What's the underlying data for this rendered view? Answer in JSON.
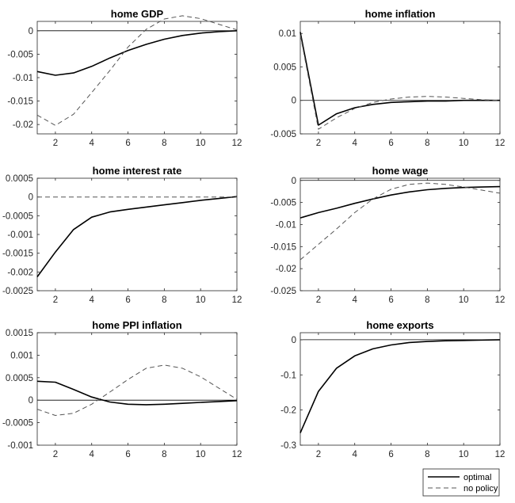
{
  "chart_data": [
    {
      "type": "line",
      "title": "home GDP",
      "xlim": [
        1,
        12
      ],
      "ylim": [
        -0.022,
        0.002
      ],
      "xticks": [
        2,
        4,
        6,
        8,
        10,
        12
      ],
      "yticks": [
        0,
        -0.005,
        -0.01,
        -0.015,
        -0.02
      ],
      "ytick_labels": [
        "0",
        "-0.005",
        "-0.01",
        "-0.015",
        "-0.02"
      ],
      "zero_line": true,
      "x": [
        1,
        2,
        3,
        4,
        5,
        6,
        7,
        8,
        9,
        10,
        11,
        12
      ],
      "series": [
        {
          "name": "optimal",
          "style": "solid",
          "values": [
            -0.0087,
            -0.0095,
            -0.009,
            -0.0076,
            -0.0058,
            -0.0042,
            -0.0029,
            -0.0018,
            -0.001,
            -0.0005,
            -0.0002,
            0.0
          ]
        },
        {
          "name": "no policy",
          "style": "dashed",
          "values": [
            -0.018,
            -0.0202,
            -0.0178,
            -0.0132,
            -0.0085,
            -0.0035,
            0.0003,
            0.0025,
            0.0032,
            0.0026,
            0.0014,
            0.0002
          ]
        }
      ]
    },
    {
      "type": "line",
      "title": "home inflation",
      "xlim": [
        1,
        12
      ],
      "ylim": [
        -0.005,
        0.0118
      ],
      "xticks": [
        2,
        4,
        6,
        8,
        10,
        12
      ],
      "yticks": [
        0.01,
        0.005,
        0,
        -0.005
      ],
      "ytick_labels": [
        "0.01",
        "0.005",
        "0",
        "-0.005"
      ],
      "zero_line": true,
      "x": [
        1,
        2,
        3,
        4,
        5,
        6,
        7,
        8,
        9,
        10,
        11,
        12
      ],
      "series": [
        {
          "name": "optimal",
          "style": "solid",
          "values": [
            0.0102,
            -0.0037,
            -0.002,
            -0.0011,
            -0.0006,
            -0.0003,
            -0.0002,
            -0.0001,
            -0.0001,
            0.0,
            0.0,
            0.0
          ]
        },
        {
          "name": "no policy",
          "style": "dashed",
          "values": [
            0.0098,
            -0.0043,
            -0.0026,
            -0.0012,
            -0.0003,
            0.0002,
            0.0005,
            0.0006,
            0.0005,
            0.0003,
            0.0001,
            0.0
          ]
        }
      ]
    },
    {
      "type": "line",
      "title": "home interest rate",
      "xlim": [
        1,
        12
      ],
      "ylim": [
        -0.0025,
        0.0005
      ],
      "xticks": [
        2,
        4,
        6,
        8,
        10,
        12
      ],
      "yticks": [
        0.0005,
        0,
        -0.0005,
        -0.001,
        -0.0015,
        -0.002,
        -0.0025
      ],
      "ytick_labels": [
        "0.0005",
        "0",
        "-0.0005",
        "-0.001",
        "-0.0015",
        "-0.002",
        "-0.0025"
      ],
      "zero_line": false,
      "x": [
        1,
        2,
        3,
        4,
        5,
        6,
        7,
        8,
        9,
        10,
        11,
        12
      ],
      "series": [
        {
          "name": "optimal",
          "style": "solid",
          "values": [
            -0.00213,
            -0.00147,
            -0.00087,
            -0.00054,
            -0.0004,
            -0.00033,
            -0.00027,
            -0.00021,
            -0.00015,
            -9e-05,
            -4e-05,
            1e-05
          ]
        },
        {
          "name": "no policy",
          "style": "dashed",
          "values": [
            0,
            0,
            0,
            0,
            0,
            0,
            0,
            0,
            0,
            0,
            0,
            0
          ]
        }
      ]
    },
    {
      "type": "line",
      "title": "home wage",
      "xlim": [
        1,
        12
      ],
      "ylim": [
        -0.025,
        0.0005
      ],
      "xticks": [
        2,
        4,
        6,
        8,
        10,
        12
      ],
      "yticks": [
        0,
        -0.005,
        -0.01,
        -0.015,
        -0.02,
        -0.025
      ],
      "ytick_labels": [
        "0",
        "-0.005",
        "-0.01",
        "-0.015",
        "-0.02",
        "-0.025"
      ],
      "zero_line": true,
      "x": [
        1,
        2,
        3,
        4,
        5,
        6,
        7,
        8,
        9,
        10,
        11,
        12
      ],
      "series": [
        {
          "name": "optimal",
          "style": "solid",
          "values": [
            -0.0085,
            -0.0073,
            -0.0063,
            -0.0052,
            -0.0042,
            -0.0033,
            -0.0026,
            -0.0021,
            -0.0018,
            -0.0016,
            -0.0015,
            -0.0014
          ]
        },
        {
          "name": "no policy",
          "style": "dashed",
          "values": [
            -0.018,
            -0.0145,
            -0.011,
            -0.0073,
            -0.0042,
            -0.002,
            -0.0009,
            -0.0006,
            -0.0009,
            -0.0015,
            -0.0022,
            -0.0029
          ]
        }
      ]
    },
    {
      "type": "line",
      "title": "home PPI inflation",
      "xlim": [
        1,
        12
      ],
      "ylim": [
        -0.001,
        0.0015
      ],
      "xticks": [
        2,
        4,
        6,
        8,
        10,
        12
      ],
      "yticks": [
        0.0015,
        0.001,
        0.0005,
        0,
        -0.0005,
        -0.001
      ],
      "ytick_labels": [
        "0.0015",
        "0.001",
        "0.0005",
        "0",
        "-0.0005",
        "-0.001"
      ],
      "zero_line": true,
      "x": [
        1,
        2,
        3,
        4,
        5,
        6,
        7,
        8,
        9,
        10,
        11,
        12
      ],
      "series": [
        {
          "name": "optimal",
          "style": "solid",
          "values": [
            0.00042,
            0.0004,
            0.00024,
            7e-05,
            -4e-05,
            -9e-05,
            -0.0001,
            -9e-05,
            -7e-05,
            -5e-05,
            -3e-05,
            -1e-05
          ]
        },
        {
          "name": "no policy",
          "style": "dashed",
          "values": [
            -0.0002,
            -0.00034,
            -0.00029,
            -9e-05,
            0.00018,
            0.00046,
            0.00071,
            0.00078,
            0.00071,
            0.00052,
            0.00027,
            2e-05
          ]
        }
      ]
    },
    {
      "type": "line",
      "title": "home exports",
      "xlim": [
        1,
        12
      ],
      "ylim": [
        -0.3,
        0.02
      ],
      "xticks": [
        2,
        4,
        6,
        8,
        10,
        12
      ],
      "yticks": [
        0,
        -0.1,
        -0.2,
        -0.3
      ],
      "ytick_labels": [
        "0",
        "-0.1",
        "-0.2",
        "-0.3"
      ],
      "zero_line": true,
      "x": [
        1,
        2,
        3,
        4,
        5,
        6,
        7,
        8,
        9,
        10,
        11,
        12
      ],
      "series": [
        {
          "name": "optimal",
          "style": "solid",
          "values": [
            -0.265,
            -0.147,
            -0.081,
            -0.046,
            -0.026,
            -0.015,
            -0.008,
            -0.005,
            -0.003,
            -0.002,
            -0.001,
            0.0
          ]
        }
      ]
    }
  ],
  "legend": {
    "placement": "bottom-right",
    "entries": [
      {
        "label": "optimal",
        "style": "solid"
      },
      {
        "label": "no policy",
        "style": "dashed"
      }
    ]
  }
}
